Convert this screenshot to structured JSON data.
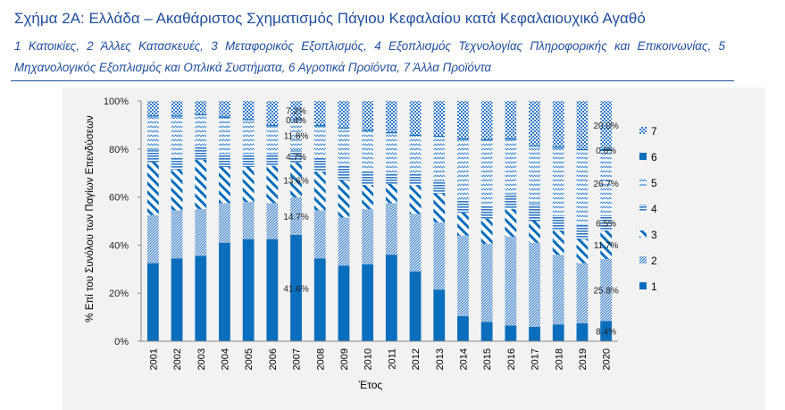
{
  "title": "Σχήμα 2Α: Ελλάδα – Ακαθάριστος Σχηματισμός Πάγιου Κεφαλαίου κατά Κεφαλαιουχικό Αγαθό",
  "subtitle": "1 Κατοικίες, 2 Άλλες Κατασκευές, 3 Μεταφορικός Εξοπλισμός, 4 Εξοπλισμός Τεχνολογίας Πληροφορικής και Επικοινωνίας, 5 Μηχανολογικός Εξοπλισμός και Οπλικά Συστήματα, 6 Αγροτικά Προϊόντα, 7 Άλλα Προϊόντα",
  "chart_data": {
    "type": "bar",
    "stacked": true,
    "xlabel": "Έτος",
    "ylabel": "% Επί του Συνόλου των Παγίων Επενδύσεων",
    "ylim": [
      0,
      100
    ],
    "yticks": [
      "0%",
      "20%",
      "40%",
      "60%",
      "80%",
      "100%"
    ],
    "legend_position": "right",
    "categories": [
      "2001",
      "2002",
      "2003",
      "2004",
      "2005",
      "2006",
      "2007",
      "2008",
      "2009",
      "2010",
      "2011",
      "2012",
      "2013",
      "2014",
      "2015",
      "2016",
      "2017",
      "2018",
      "2019",
      "2020"
    ],
    "series": [
      {
        "name": "1",
        "values": [
          32.5,
          34.5,
          35.5,
          41.0,
          42.5,
          42.5,
          41.6,
          34.5,
          31.5,
          32.0,
          36.0,
          29.0,
          21.5,
          10.5,
          8.0,
          6.5,
          6.0,
          7.0,
          7.5,
          8.4
        ],
        "color": "#0a6ebd",
        "pattern": "solid"
      },
      {
        "name": "2",
        "values": [
          20.0,
          20.0,
          19.5,
          16.5,
          15.5,
          15.0,
          14.7,
          20.0,
          20.0,
          23.0,
          21.5,
          24.0,
          28.0,
          33.5,
          32.5,
          37.0,
          35.0,
          29.0,
          25.0,
          25.8
        ],
        "color": "#2f78c4",
        "pattern": "dense-diag"
      },
      {
        "name": "3",
        "values": [
          22.0,
          17.0,
          20.5,
          15.0,
          14.5,
          15.5,
          13.6,
          16.0,
          15.5,
          10.0,
          8.0,
          12.0,
          12.0,
          9.5,
          10.5,
          11.5,
          9.0,
          10.0,
          10.0,
          11.7
        ],
        "color": "#0a6ebd",
        "pattern": "wide-diag"
      },
      {
        "name": "4",
        "values": [
          5.0,
          5.0,
          5.5,
          5.5,
          5.5,
          4.5,
          4.7,
          6.0,
          6.5,
          6.0,
          4.5,
          5.0,
          5.5,
          5.5,
          5.5,
          6.0,
          7.0,
          6.0,
          6.0,
          6.5
        ],
        "color": "#2f78c4",
        "pattern": "horizontal"
      },
      {
        "name": "5",
        "values": [
          14.0,
          17.0,
          13.0,
          15.0,
          14.0,
          12.0,
          11.8,
          13.0,
          15.0,
          16.5,
          16.5,
          15.5,
          18.0,
          25.0,
          27.0,
          23.0,
          24.0,
          28.5,
          31.0,
          26.7
        ],
        "color": "#4a8fd0",
        "pattern": "zigzag"
      },
      {
        "name": "6",
        "values": [
          0.5,
          0.5,
          0.5,
          0.5,
          0.5,
          0.5,
          0.4,
          0.5,
          0.5,
          0.5,
          0.5,
          0.5,
          0.5,
          0.5,
          0.5,
          0.5,
          0.5,
          0.5,
          0.5,
          0.8
        ],
        "color": "#0a6ebd",
        "pattern": "solid"
      },
      {
        "name": "7",
        "values": [
          6.0,
          6.0,
          5.5,
          6.5,
          7.5,
          10.0,
          7.2,
          10.0,
          11.0,
          12.0,
          13.0,
          14.0,
          14.5,
          15.5,
          16.0,
          15.5,
          18.5,
          19.0,
          20.0,
          20.0
        ],
        "color": "#2f78c4",
        "pattern": "checker"
      }
    ],
    "data_labels": [
      {
        "category": "2007",
        "series": "7",
        "text": "7.2%"
      },
      {
        "category": "2007",
        "series": "6",
        "text": "0.4%"
      },
      {
        "category": "2007",
        "series": "5",
        "text": "11.8%"
      },
      {
        "category": "2007",
        "series": "4",
        "text": "4.7%"
      },
      {
        "category": "2007",
        "series": "3",
        "text": "13.6%"
      },
      {
        "category": "2007",
        "series": "2",
        "text": "14.7%"
      },
      {
        "category": "2007",
        "series": "1",
        "text": "41.6%"
      },
      {
        "category": "2020",
        "series": "7",
        "text": "20.0%"
      },
      {
        "category": "2020",
        "series": "6",
        "text": "0.8%"
      },
      {
        "category": "2020",
        "series": "5",
        "text": "26.7%"
      },
      {
        "category": "2020",
        "series": "4",
        "text": "6.5%"
      },
      {
        "category": "2020",
        "series": "3",
        "text": "11.7%"
      },
      {
        "category": "2020",
        "series": "2",
        "text": "25.8%"
      },
      {
        "category": "2020",
        "series": "1",
        "text": "8.4%"
      }
    ]
  }
}
